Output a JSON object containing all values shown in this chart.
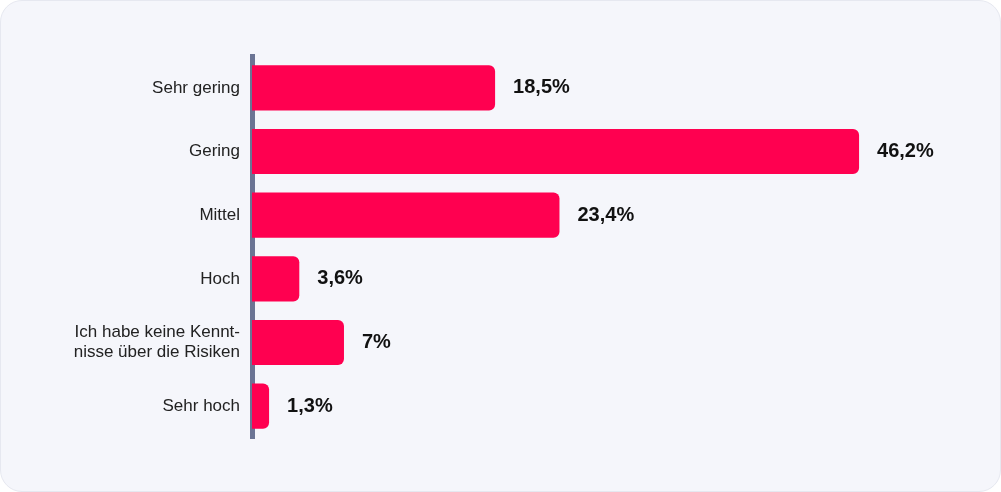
{
  "chart_data": {
    "type": "bar",
    "orientation": "horizontal",
    "categories": [
      "Sehr gering",
      "Gering",
      "Mittel",
      "Hoch",
      "Ich habe keine Kennt-\nnisse über die Risiken",
      "Sehr hoch"
    ],
    "values": [
      18.5,
      46.2,
      23.4,
      3.6,
      7,
      1.3
    ],
    "value_labels": [
      "18,5%",
      "46,2%",
      "23,4%",
      "3,6%",
      "7%",
      "1,3%"
    ],
    "color": "#ff0050",
    "tick_labels": "y",
    "legend": false
  }
}
